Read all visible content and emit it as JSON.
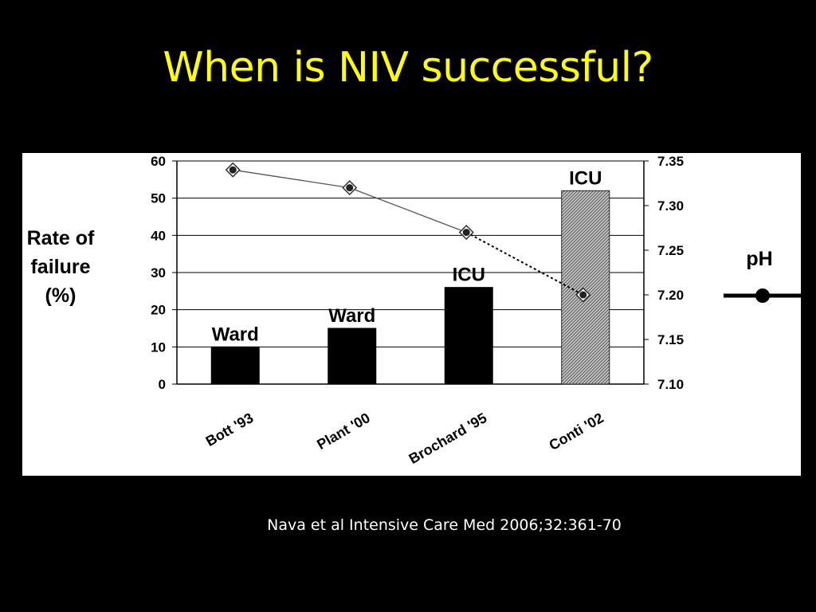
{
  "slide": {
    "title": "When is NIV successful?",
    "citation": "Nava et al Intensive Care Med 2006;32:361-70"
  },
  "colors": {
    "background": "#000000",
    "title": "#ffff00",
    "panel": "#ffffff",
    "bar": "#000000",
    "bar_hatched": "#9a9a9a",
    "line": "#555555"
  },
  "chart_data": {
    "type": "bar",
    "title": "",
    "categories": [
      "Bott '93",
      "Plant '00",
      "Brochard '95",
      "Conti '02"
    ],
    "setting_labels": [
      "Ward",
      "Ward",
      "ICU",
      "ICU"
    ],
    "series": [
      {
        "name": "Rate of failure (%)",
        "type": "bar",
        "axis": "left",
        "values": [
          10,
          15,
          26,
          52
        ],
        "styles": [
          "solid",
          "solid",
          "solid",
          "hatched"
        ]
      },
      {
        "name": "pH",
        "type": "line",
        "axis": "right",
        "values": [
          7.34,
          7.32,
          7.27,
          7.2
        ]
      }
    ],
    "ylabel": "Rate of failure (%)",
    "ylabel_lines": [
      "Rate of",
      "failure",
      "(%)"
    ],
    "y2label": "pH",
    "ylim": [
      0,
      60
    ],
    "y2lim": [
      7.1,
      7.35
    ],
    "yticks": [
      "0",
      "10",
      "20",
      "30",
      "40",
      "50",
      "60"
    ],
    "y2ticks": [
      "7.10",
      "7.15",
      "7.20",
      "7.25",
      "7.30",
      "7.35"
    ],
    "grid": true,
    "legend": "right"
  }
}
